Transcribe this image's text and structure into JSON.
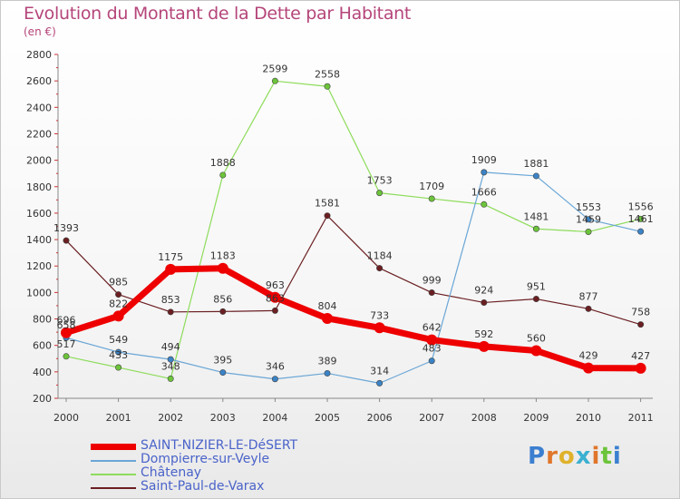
{
  "title": "Evolution du Montant de la Dette par Habitant",
  "unit": "(en €)",
  "logo": "Proxiti",
  "chart_data": {
    "type": "line",
    "x": [
      "2000",
      "2001",
      "2002",
      "2003",
      "2004",
      "2005",
      "2006",
      "2007",
      "2008",
      "2009",
      "2010",
      "2011"
    ],
    "ylim": [
      200,
      2800
    ],
    "yticks": [
      200,
      400,
      600,
      800,
      1000,
      1200,
      1400,
      1600,
      1800,
      2000,
      2200,
      2400,
      2600,
      2800
    ],
    "grid": false,
    "legend_position": "bottom-left",
    "series": [
      {
        "name": "Saint-Paul-de-Varax",
        "color": "#6b1f22",
        "marker": "#6b1f22",
        "width": 1.2,
        "values": [
          1393,
          985,
          853,
          856,
          863,
          1581,
          1184,
          999,
          924,
          951,
          877,
          758
        ],
        "labels": [
          "1393",
          "985",
          "853",
          "856",
          "863",
          "1581",
          "1184",
          "999",
          "924",
          "951",
          "877",
          "758"
        ]
      },
      {
        "name": "Châtenay",
        "color": "#8ddc5a",
        "marker": "#6cc43a",
        "width": 1.2,
        "values": [
          517,
          433,
          348,
          1888,
          2599,
          2558,
          1753,
          1709,
          1666,
          1481,
          1459,
          1556
        ],
        "labels": [
          "517",
          "433",
          "348",
          "1888",
          "2599",
          "2558",
          "1753",
          "1709",
          "1666",
          "1481",
          "1459",
          "1556"
        ]
      },
      {
        "name": "Dompierre-sur-Veyle",
        "color": "#6aa6d6",
        "marker": "#3b83c6",
        "width": 1.2,
        "values": [
          658,
          549,
          494,
          395,
          346,
          389,
          314,
          483,
          1909,
          1881,
          1553,
          1461
        ],
        "labels": [
          "658",
          "549",
          "494",
          "395",
          "346",
          "389",
          "314",
          "483",
          "1909",
          "1881",
          "1553",
          "1461"
        ]
      },
      {
        "name": "SAINT-NIZIER-LE-DéSERT",
        "color": "#ee0000",
        "marker": "#ee0000",
        "width": 7,
        "values": [
          696,
          822,
          1175,
          1183,
          963,
          804,
          733,
          642,
          592,
          560,
          429,
          427
        ],
        "labels": [
          "696",
          "822",
          "1175",
          "1183",
          "963",
          "804",
          "733",
          "642",
          "592",
          "560",
          "429",
          "427"
        ]
      }
    ]
  },
  "legend": [
    {
      "label": "SAINT-NIZIER-LE-DéSERT",
      "color": "#ee0000",
      "thick": true
    },
    {
      "label": "Dompierre-sur-Veyle",
      "color": "#6aa6d6",
      "thick": false
    },
    {
      "label": "Châtenay",
      "color": "#8ddc5a",
      "thick": false
    },
    {
      "label": "Saint-Paul-de-Varax",
      "color": "#6b1f22",
      "thick": false
    }
  ]
}
